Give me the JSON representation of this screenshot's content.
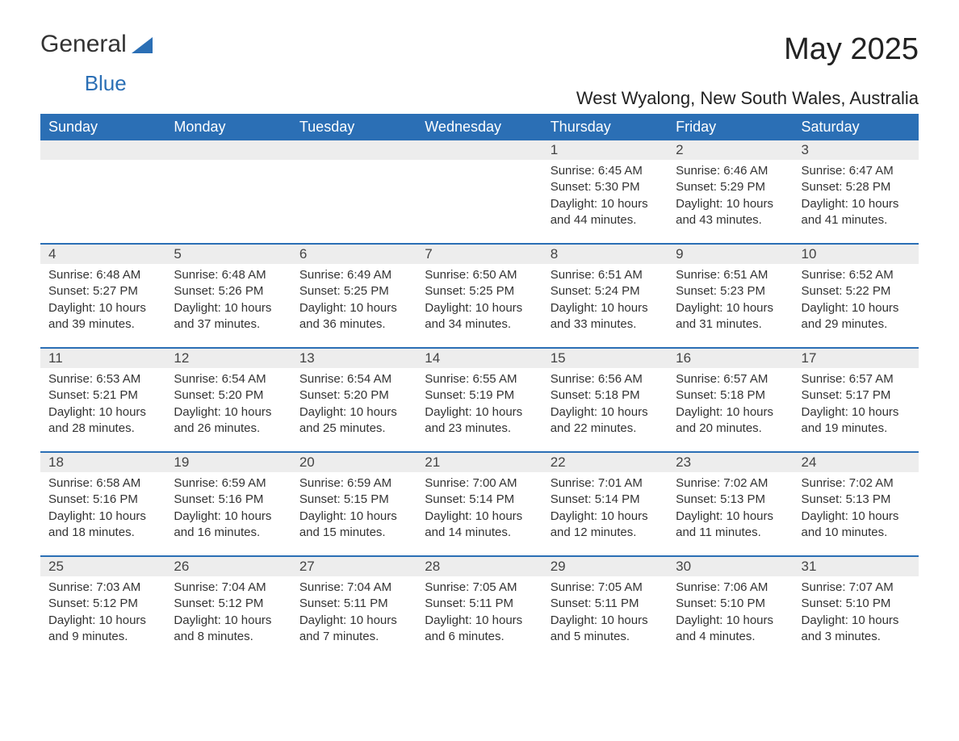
{
  "logo": {
    "general": "General",
    "blue": "Blue"
  },
  "title": "May 2025",
  "location": "West Wyalong, New South Wales, Australia",
  "colors": {
    "header_bg": "#2b6fb5",
    "header_text": "#ffffff",
    "daynum_bg": "#ededed",
    "body_text": "#333333",
    "page_bg": "#ffffff"
  },
  "day_headers": [
    "Sunday",
    "Monday",
    "Tuesday",
    "Wednesday",
    "Thursday",
    "Friday",
    "Saturday"
  ],
  "label": {
    "sunrise": "Sunrise:",
    "sunset": "Sunset:",
    "daylight": "Daylight:"
  },
  "weeks": [
    [
      null,
      null,
      null,
      null,
      {
        "n": "1",
        "sunrise": "6:45 AM",
        "sunset": "5:30 PM",
        "daylight": "10 hours and 44 minutes."
      },
      {
        "n": "2",
        "sunrise": "6:46 AM",
        "sunset": "5:29 PM",
        "daylight": "10 hours and 43 minutes."
      },
      {
        "n": "3",
        "sunrise": "6:47 AM",
        "sunset": "5:28 PM",
        "daylight": "10 hours and 41 minutes."
      }
    ],
    [
      {
        "n": "4",
        "sunrise": "6:48 AM",
        "sunset": "5:27 PM",
        "daylight": "10 hours and 39 minutes."
      },
      {
        "n": "5",
        "sunrise": "6:48 AM",
        "sunset": "5:26 PM",
        "daylight": "10 hours and 37 minutes."
      },
      {
        "n": "6",
        "sunrise": "6:49 AM",
        "sunset": "5:25 PM",
        "daylight": "10 hours and 36 minutes."
      },
      {
        "n": "7",
        "sunrise": "6:50 AM",
        "sunset": "5:25 PM",
        "daylight": "10 hours and 34 minutes."
      },
      {
        "n": "8",
        "sunrise": "6:51 AM",
        "sunset": "5:24 PM",
        "daylight": "10 hours and 33 minutes."
      },
      {
        "n": "9",
        "sunrise": "6:51 AM",
        "sunset": "5:23 PM",
        "daylight": "10 hours and 31 minutes."
      },
      {
        "n": "10",
        "sunrise": "6:52 AM",
        "sunset": "5:22 PM",
        "daylight": "10 hours and 29 minutes."
      }
    ],
    [
      {
        "n": "11",
        "sunrise": "6:53 AM",
        "sunset": "5:21 PM",
        "daylight": "10 hours and 28 minutes."
      },
      {
        "n": "12",
        "sunrise": "6:54 AM",
        "sunset": "5:20 PM",
        "daylight": "10 hours and 26 minutes."
      },
      {
        "n": "13",
        "sunrise": "6:54 AM",
        "sunset": "5:20 PM",
        "daylight": "10 hours and 25 minutes."
      },
      {
        "n": "14",
        "sunrise": "6:55 AM",
        "sunset": "5:19 PM",
        "daylight": "10 hours and 23 minutes."
      },
      {
        "n": "15",
        "sunrise": "6:56 AM",
        "sunset": "5:18 PM",
        "daylight": "10 hours and 22 minutes."
      },
      {
        "n": "16",
        "sunrise": "6:57 AM",
        "sunset": "5:18 PM",
        "daylight": "10 hours and 20 minutes."
      },
      {
        "n": "17",
        "sunrise": "6:57 AM",
        "sunset": "5:17 PM",
        "daylight": "10 hours and 19 minutes."
      }
    ],
    [
      {
        "n": "18",
        "sunrise": "6:58 AM",
        "sunset": "5:16 PM",
        "daylight": "10 hours and 18 minutes."
      },
      {
        "n": "19",
        "sunrise": "6:59 AM",
        "sunset": "5:16 PM",
        "daylight": "10 hours and 16 minutes."
      },
      {
        "n": "20",
        "sunrise": "6:59 AM",
        "sunset": "5:15 PM",
        "daylight": "10 hours and 15 minutes."
      },
      {
        "n": "21",
        "sunrise": "7:00 AM",
        "sunset": "5:14 PM",
        "daylight": "10 hours and 14 minutes."
      },
      {
        "n": "22",
        "sunrise": "7:01 AM",
        "sunset": "5:14 PM",
        "daylight": "10 hours and 12 minutes."
      },
      {
        "n": "23",
        "sunrise": "7:02 AM",
        "sunset": "5:13 PM",
        "daylight": "10 hours and 11 minutes."
      },
      {
        "n": "24",
        "sunrise": "7:02 AM",
        "sunset": "5:13 PM",
        "daylight": "10 hours and 10 minutes."
      }
    ],
    [
      {
        "n": "25",
        "sunrise": "7:03 AM",
        "sunset": "5:12 PM",
        "daylight": "10 hours and 9 minutes."
      },
      {
        "n": "26",
        "sunrise": "7:04 AM",
        "sunset": "5:12 PM",
        "daylight": "10 hours and 8 minutes."
      },
      {
        "n": "27",
        "sunrise": "7:04 AM",
        "sunset": "5:11 PM",
        "daylight": "10 hours and 7 minutes."
      },
      {
        "n": "28",
        "sunrise": "7:05 AM",
        "sunset": "5:11 PM",
        "daylight": "10 hours and 6 minutes."
      },
      {
        "n": "29",
        "sunrise": "7:05 AM",
        "sunset": "5:11 PM",
        "daylight": "10 hours and 5 minutes."
      },
      {
        "n": "30",
        "sunrise": "7:06 AM",
        "sunset": "5:10 PM",
        "daylight": "10 hours and 4 minutes."
      },
      {
        "n": "31",
        "sunrise": "7:07 AM",
        "sunset": "5:10 PM",
        "daylight": "10 hours and 3 minutes."
      }
    ]
  ]
}
